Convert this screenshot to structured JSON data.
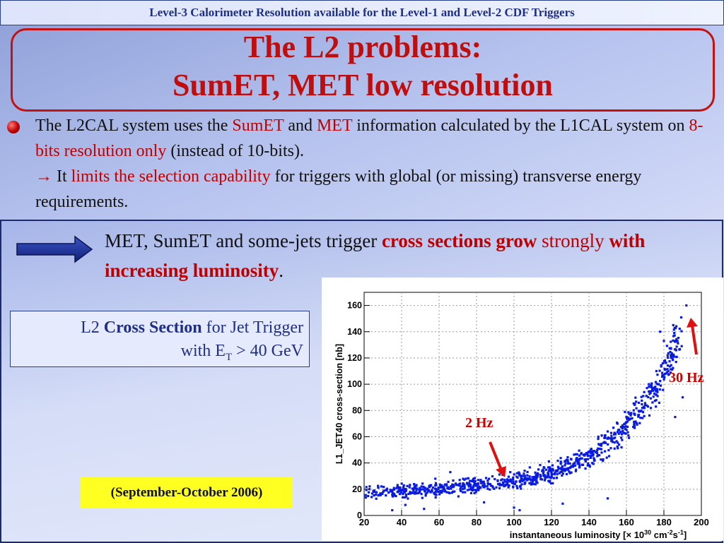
{
  "header": {
    "banner": "Level-3 Calorimeter Resolution available for the Level-1 and Level-2 CDF Triggers"
  },
  "title": {
    "line1": "The L2 problems:",
    "line2": "SumET, MET low resolution"
  },
  "bullet": {
    "t1": "The L2CAL system uses the ",
    "t2": "SumET",
    "t3": " and ",
    "t4": "MET",
    "t5": " information calculated by the L1CAL system on ",
    "t6": "8-bits resolution only",
    "t7": " (instead of 10-bits).",
    "arrow": "→",
    "t8": " It ",
    "t9": "limits the selection capability",
    "t10": " for triggers with global (or missing) transverse energy requirements."
  },
  "lead": {
    "t1": "MET, SumET and some-jets trigger ",
    "t2": "cross sections grow",
    "t3": " strongly ",
    "t4": "with increasing luminosity",
    "t5": "."
  },
  "xsec_box": {
    "t1": "L2 ",
    "t2": "Cross Section",
    "t3": " for Jet Trigger",
    "t4": "with E",
    "t5": "T",
    "t6": " > 40 GeV"
  },
  "date_label": "(September-October 2006)",
  "annotations": {
    "low": "2 Hz",
    "high": "30 Hz"
  },
  "colors": {
    "title_red": "#c00d0d",
    "navy": "#1f2f86",
    "marker": "#0a1be0",
    "highlight": "#ffff22"
  },
  "chart_data": {
    "type": "scatter",
    "xlabel_pre": "instantaneous luminosity [",
    "xlabel_times": "×",
    "xlabel_10": " 10",
    "xlabel_exp": "30",
    "xlabel_unit": " cm",
    "xlabel_unit_exp": "-2",
    "xlabel_s": "s",
    "xlabel_s_exp": "-1",
    "xlabel_post": "]",
    "ylabel": "L1_JET40 cross-section [nb]",
    "xlim": [
      20,
      200
    ],
    "ylim": [
      0,
      170
    ],
    "xticks": [
      20,
      40,
      60,
      80,
      100,
      120,
      140,
      160,
      180,
      200
    ],
    "yticks": [
      0,
      20,
      40,
      60,
      80,
      100,
      120,
      140,
      160
    ],
    "grid": true,
    "trend": [
      [
        20,
        18
      ],
      [
        30,
        18
      ],
      [
        40,
        18.5
      ],
      [
        50,
        19
      ],
      [
        60,
        19.5
      ],
      [
        70,
        21
      ],
      [
        80,
        23
      ],
      [
        90,
        24.5
      ],
      [
        100,
        26
      ],
      [
        110,
        29
      ],
      [
        120,
        33
      ],
      [
        130,
        38
      ],
      [
        140,
        45
      ],
      [
        150,
        54
      ],
      [
        160,
        68
      ],
      [
        170,
        85
      ],
      [
        180,
        108
      ],
      [
        190,
        140
      ],
      [
        195,
        160
      ]
    ],
    "outliers": [
      [
        192,
        160
      ],
      [
        185,
        145
      ],
      [
        178,
        140
      ],
      [
        182,
        122
      ],
      [
        180,
        133
      ],
      [
        176,
        92
      ],
      [
        190,
        90
      ],
      [
        186,
        75
      ],
      [
        150,
        64
      ],
      [
        145,
        60
      ],
      [
        35,
        4
      ],
      [
        42,
        8
      ],
      [
        58,
        28
      ],
      [
        66,
        33
      ],
      [
        100,
        6
      ],
      [
        103,
        4
      ],
      [
        126,
        9
      ],
      [
        150,
        13
      ],
      [
        98,
        33
      ],
      [
        118,
        30
      ],
      [
        84,
        10
      ],
      [
        52,
        5
      ],
      [
        176,
        110
      ],
      [
        172,
        100
      ]
    ]
  }
}
